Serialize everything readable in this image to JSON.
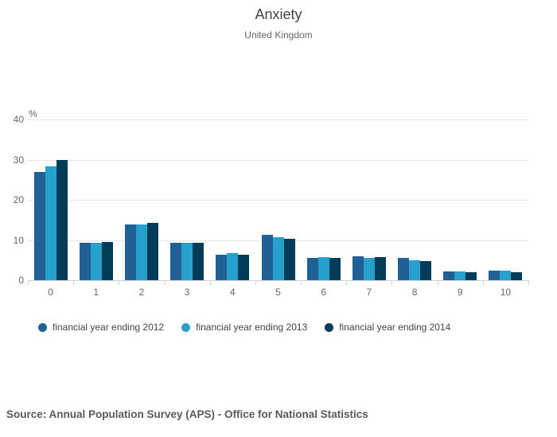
{
  "header": {
    "title": "Anxiety",
    "subtitle": "United Kingdom"
  },
  "chart_data": {
    "type": "bar",
    "title": "Anxiety",
    "subtitle": "United Kingdom",
    "categories": [
      "0",
      "1",
      "2",
      "3",
      "4",
      "5",
      "6",
      "7",
      "8",
      "9",
      "10"
    ],
    "series": [
      {
        "name": "financial year ending 2012",
        "color": "#206095",
        "values": [
          27.0,
          9.3,
          13.8,
          9.4,
          6.4,
          11.3,
          5.6,
          5.9,
          5.5,
          2.1,
          2.4
        ]
      },
      {
        "name": "financial year ending 2013",
        "color": "#27a0cc",
        "values": [
          28.4,
          9.3,
          13.9,
          9.4,
          6.7,
          10.7,
          5.8,
          5.6,
          5.0,
          2.2,
          2.3
        ]
      },
      {
        "name": "financial year ending 2014",
        "color": "#003c57",
        "values": [
          29.9,
          9.5,
          14.3,
          9.4,
          6.4,
          10.3,
          5.5,
          5.7,
          4.7,
          1.9,
          1.9
        ]
      }
    ],
    "xlabel": "",
    "ylabel": "%",
    "ylim": [
      0,
      40
    ],
    "yticks": [
      0,
      10,
      20,
      30,
      40
    ],
    "grid": true,
    "legend_position": "bottom",
    "grid_color": "#e6e6e6",
    "axis_color": "#c8d4e3"
  },
  "footer": {
    "source": "Source: Annual Population Survey (APS) - Office for National Statistics"
  }
}
